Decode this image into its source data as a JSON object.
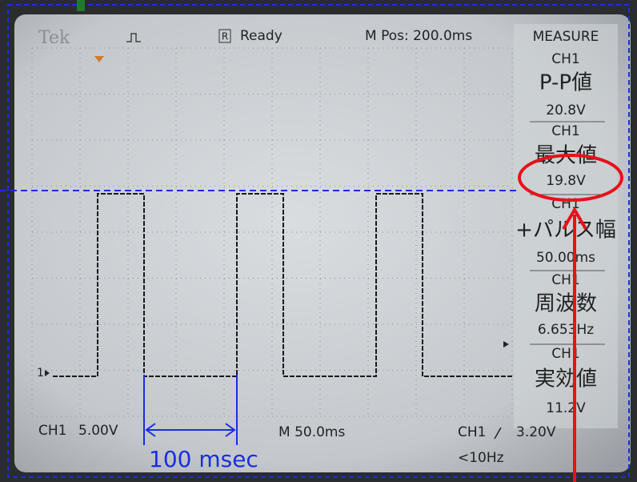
{
  "header": {
    "brand": "Tek",
    "status_icon": "R",
    "status": "Ready",
    "position": "M Pos: 200.0ms"
  },
  "measure": {
    "title": "MEASURE",
    "items": [
      {
        "channel": "CH1",
        "name": "P-P値",
        "value": "20.8V"
      },
      {
        "channel": "CH1",
        "name": "最大値",
        "value": "19.8V"
      },
      {
        "channel": "CH1",
        "name": "+パルス幅",
        "value": "50.00ms"
      },
      {
        "channel": "CH1",
        "name": "周波数",
        "value": "6.653Hz"
      },
      {
        "channel": "CH1",
        "name": "実効値",
        "value": "11.2V"
      }
    ]
  },
  "marker": "1",
  "footer": {
    "channel": "CH1",
    "scale": "5.00V",
    "timebase": "M 50.0ms",
    "trigger_channel": "CH1",
    "trigger_level": "3.20V",
    "frequency": "<10Hz"
  },
  "annotation": "100 msec"
}
